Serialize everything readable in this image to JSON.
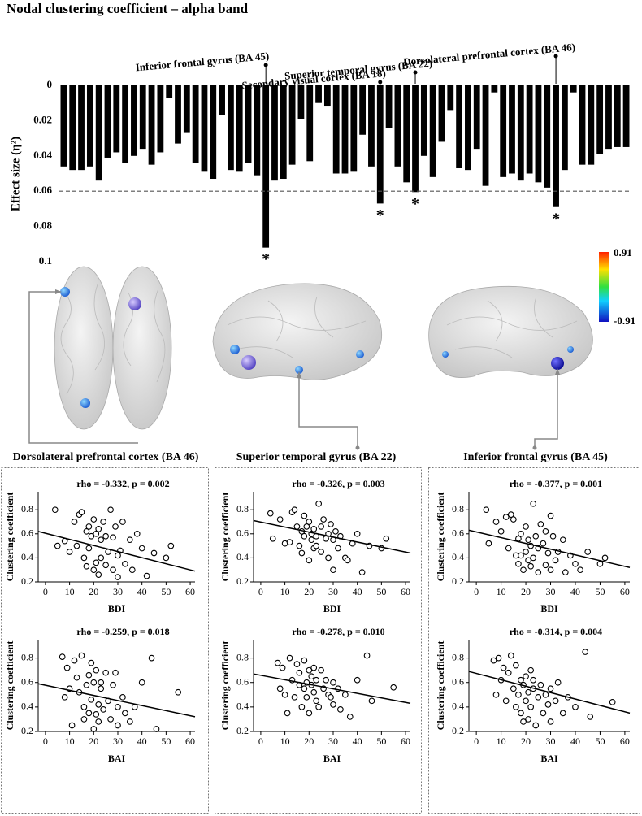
{
  "chart_data": [
    {
      "type": "bar",
      "title": "Nodal clustering coefficient – alpha band",
      "y_label": "Effect size (η²)",
      "categories": [
        null,
        null,
        null,
        null,
        null,
        null,
        null,
        null,
        null,
        null,
        null,
        null,
        null,
        null,
        null,
        null,
        null,
        null,
        null,
        null,
        null,
        null,
        null,
        "Inferior frontal gyrus (BA 45)",
        null,
        null,
        null,
        null,
        null,
        null,
        null,
        null,
        null,
        null,
        null,
        null,
        "Secondary visual cortex (BA 18)",
        null,
        null,
        null,
        "Superior temporal gyrus (BA 22)",
        null,
        null,
        null,
        null,
        null,
        null,
        null,
        null,
        null,
        null,
        null,
        null,
        null,
        null,
        null,
        "Dorsolateral prefrontal cortex (BA 46)",
        null,
        null,
        null,
        null,
        null,
        null,
        null,
        null
      ],
      "values": [
        0.046,
        0.048,
        0.048,
        0.046,
        0.054,
        0.041,
        0.038,
        0.044,
        0.04,
        0.036,
        0.045,
        0.038,
        0.007,
        0.033,
        0.027,
        0.044,
        0.049,
        0.053,
        0.017,
        0.048,
        0.049,
        0.044,
        0.051,
        0.092,
        0.054,
        0.053,
        0.045,
        0.019,
        0.043,
        0.01,
        0.012,
        0.05,
        0.05,
        0.049,
        0.028,
        0.046,
        0.067,
        0.024,
        0.046,
        0.055,
        0.0605,
        0.04,
        0.052,
        0.032,
        0.014,
        0.047,
        0.048,
        0.036,
        0.057,
        0.004,
        0.052,
        0.05,
        0.054,
        0.05,
        0.055,
        0.058,
        0.069,
        0.048,
        0.004,
        0.045,
        0.045,
        0.039,
        0.036,
        0.035,
        0.035
      ],
      "markers": [
        null,
        null,
        null,
        null,
        null,
        null,
        null,
        null,
        null,
        null,
        null,
        null,
        null,
        null,
        null,
        null,
        null,
        null,
        null,
        null,
        null,
        null,
        null,
        "*",
        null,
        null,
        null,
        null,
        null,
        null,
        null,
        null,
        null,
        null,
        null,
        null,
        "*",
        null,
        null,
        null,
        "*",
        null,
        null,
        null,
        null,
        null,
        null,
        null,
        null,
        null,
        null,
        null,
        null,
        null,
        null,
        null,
        "*",
        null,
        null,
        null,
        null,
        null,
        null,
        null,
        null
      ],
      "color": "#000000",
      "ylim": [
        0,
        0.1
      ],
      "yticks": [
        0,
        0.02,
        0.04,
        0.06,
        0.08,
        0.1
      ],
      "y_inverted": true,
      "threshold": 0.06,
      "grid": false
    },
    {
      "type": "scatter",
      "title": "rho = -0.332, p = 0.002",
      "x_label": "BDI",
      "y_label": "Clustering coefficient",
      "x": [
        4,
        5,
        8,
        10,
        12,
        13,
        14,
        15,
        16,
        17,
        17,
        18,
        18,
        19,
        20,
        20,
        21,
        21,
        22,
        22,
        23,
        23,
        24,
        25,
        25,
        26,
        27,
        28,
        28,
        29,
        30,
        30,
        31,
        32,
        33,
        35,
        36,
        38,
        40,
        42,
        45,
        50,
        52
      ],
      "values": [
        0.8,
        0.5,
        0.54,
        0.45,
        0.7,
        0.5,
        0.76,
        0.78,
        0.4,
        0.62,
        0.33,
        0.66,
        0.48,
        0.58,
        0.72,
        0.3,
        0.6,
        0.36,
        0.26,
        0.64,
        0.55,
        0.4,
        0.7,
        0.58,
        0.34,
        0.45,
        0.8,
        0.57,
        0.3,
        0.66,
        0.42,
        0.24,
        0.46,
        0.7,
        0.35,
        0.55,
        0.3,
        0.6,
        0.48,
        0.25,
        0.44,
        0.4,
        0.5
      ],
      "fit": {
        "x": [
          -3,
          62
        ],
        "values": [
          0.62,
          0.29
        ]
      },
      "xlim": [
        -3,
        62
      ],
      "ylim": [
        0.2,
        0.95
      ],
      "xticks": [
        0,
        10,
        20,
        30,
        40,
        50,
        60
      ],
      "yticks": [
        0.2,
        0.4,
        0.6,
        0.8
      ]
    },
    {
      "type": "scatter",
      "title": "rho = -0.326, p = 0.003",
      "x_label": "BDI",
      "y_label": "Clustering coefficient",
      "x": [
        4,
        5,
        8,
        10,
        12,
        13,
        14,
        15,
        16,
        17,
        17,
        18,
        18,
        19,
        20,
        20,
        21,
        21,
        22,
        22,
        23,
        23,
        24,
        25,
        25,
        26,
        27,
        28,
        28,
        29,
        30,
        30,
        31,
        32,
        33,
        35,
        36,
        38,
        40,
        42,
        45,
        50,
        52
      ],
      "values": [
        0.77,
        0.56,
        0.72,
        0.52,
        0.53,
        0.78,
        0.8,
        0.66,
        0.5,
        0.62,
        0.44,
        0.75,
        0.58,
        0.66,
        0.7,
        0.38,
        0.6,
        0.55,
        0.48,
        0.64,
        0.58,
        0.5,
        0.85,
        0.66,
        0.45,
        0.72,
        0.56,
        0.6,
        0.4,
        0.68,
        0.55,
        0.3,
        0.62,
        0.48,
        0.58,
        0.4,
        0.38,
        0.52,
        0.6,
        0.28,
        0.5,
        0.48,
        0.56
      ],
      "fit": {
        "x": [
          -3,
          62
        ],
        "values": [
          0.71,
          0.44
        ]
      },
      "xlim": [
        -3,
        62
      ],
      "ylim": [
        0.2,
        0.95
      ],
      "xticks": [
        0,
        10,
        20,
        30,
        40,
        50,
        60
      ],
      "yticks": [
        0.2,
        0.4,
        0.6,
        0.8
      ]
    },
    {
      "type": "scatter",
      "title": "rho = -0.377, p = 0.001",
      "x_label": "BDI",
      "y_label": "Clustering coefficient",
      "x": [
        4,
        5,
        8,
        10,
        12,
        13,
        14,
        15,
        16,
        17,
        17,
        18,
        18,
        19,
        20,
        20,
        21,
        21,
        22,
        22,
        23,
        23,
        24,
        25,
        25,
        26,
        27,
        28,
        28,
        29,
        30,
        30,
        31,
        32,
        33,
        35,
        36,
        38,
        40,
        42,
        45,
        50,
        52
      ],
      "values": [
        0.8,
        0.52,
        0.7,
        0.62,
        0.74,
        0.48,
        0.76,
        0.72,
        0.42,
        0.56,
        0.35,
        0.6,
        0.42,
        0.3,
        0.66,
        0.45,
        0.38,
        0.55,
        0.33,
        0.5,
        0.85,
        0.4,
        0.58,
        0.48,
        0.28,
        0.68,
        0.52,
        0.62,
        0.34,
        0.44,
        0.75,
        0.3,
        0.58,
        0.38,
        0.45,
        0.55,
        0.28,
        0.42,
        0.35,
        0.3,
        0.45,
        0.35,
        0.4
      ],
      "fit": {
        "x": [
          -3,
          62
        ],
        "values": [
          0.63,
          0.32
        ]
      },
      "xlim": [
        -3,
        62
      ],
      "ylim": [
        0.2,
        0.95
      ],
      "xticks": [
        0,
        10,
        20,
        30,
        40,
        50,
        60
      ],
      "yticks": [
        0.2,
        0.4,
        0.6,
        0.8
      ]
    },
    {
      "type": "scatter",
      "title": "rho = -0.259, p = 0.018",
      "x_label": "BAI",
      "y_label": "Clustering coefficient",
      "x": [
        7,
        8,
        9,
        10,
        11,
        12,
        13,
        14,
        15,
        16,
        16,
        17,
        18,
        18,
        19,
        19,
        20,
        20,
        21,
        21,
        22,
        22,
        23,
        23,
        24,
        25,
        26,
        27,
        28,
        29,
        30,
        30,
        32,
        33,
        35,
        37,
        40,
        44,
        46,
        55
      ],
      "values": [
        0.81,
        0.48,
        0.72,
        0.55,
        0.25,
        0.78,
        0.64,
        0.52,
        0.82,
        0.4,
        0.3,
        0.58,
        0.66,
        0.35,
        0.76,
        0.46,
        0.6,
        0.22,
        0.7,
        0.34,
        0.42,
        0.28,
        0.55,
        0.6,
        0.38,
        0.68,
        0.45,
        0.3,
        0.58,
        0.68,
        0.4,
        0.25,
        0.48,
        0.35,
        0.28,
        0.4,
        0.6,
        0.8,
        0.22,
        0.52
      ],
      "fit": {
        "x": [
          -3,
          62
        ],
        "values": [
          0.59,
          0.32
        ]
      },
      "xlim": [
        -3,
        62
      ],
      "ylim": [
        0.2,
        0.95
      ],
      "xticks": [
        0,
        10,
        20,
        30,
        40,
        50,
        60
      ],
      "yticks": [
        0.2,
        0.4,
        0.6,
        0.8
      ]
    },
    {
      "type": "scatter",
      "title": "rho = -0.278, p = 0.010",
      "x_label": "BAI",
      "y_label": "Clustering coefficient",
      "x": [
        7,
        8,
        9,
        10,
        11,
        12,
        13,
        14,
        15,
        16,
        16,
        17,
        18,
        18,
        19,
        19,
        20,
        20,
        21,
        21,
        22,
        22,
        23,
        23,
        24,
        25,
        26,
        27,
        28,
        29,
        30,
        30,
        32,
        33,
        35,
        37,
        40,
        44,
        46,
        55
      ],
      "values": [
        0.76,
        0.55,
        0.72,
        0.5,
        0.35,
        0.8,
        0.62,
        0.48,
        0.75,
        0.58,
        0.68,
        0.4,
        0.55,
        0.78,
        0.6,
        0.48,
        0.7,
        0.35,
        0.58,
        0.65,
        0.52,
        0.72,
        0.45,
        0.62,
        0.4,
        0.7,
        0.55,
        0.62,
        0.5,
        0.48,
        0.6,
        0.42,
        0.55,
        0.38,
        0.5,
        0.32,
        0.62,
        0.82,
        0.45,
        0.56
      ],
      "fit": {
        "x": [
          -3,
          62
        ],
        "values": [
          0.67,
          0.43
        ]
      },
      "xlim": [
        -3,
        62
      ],
      "ylim": [
        0.2,
        0.95
      ],
      "xticks": [
        0,
        10,
        20,
        30,
        40,
        50,
        60
      ],
      "yticks": [
        0.2,
        0.4,
        0.6,
        0.8
      ]
    },
    {
      "type": "scatter",
      "title": "rho = -0.314, p = 0.004",
      "x_label": "BAI",
      "y_label": "Clustering coefficient",
      "x": [
        7,
        8,
        9,
        10,
        11,
        12,
        13,
        14,
        15,
        16,
        16,
        17,
        18,
        18,
        19,
        19,
        20,
        20,
        21,
        21,
        22,
        22,
        23,
        23,
        24,
        25,
        26,
        27,
        28,
        29,
        30,
        30,
        32,
        33,
        35,
        37,
        40,
        44,
        46,
        55
      ],
      "values": [
        0.78,
        0.5,
        0.8,
        0.62,
        0.72,
        0.45,
        0.68,
        0.82,
        0.55,
        0.4,
        0.74,
        0.5,
        0.62,
        0.35,
        0.58,
        0.28,
        0.65,
        0.45,
        0.52,
        0.3,
        0.7,
        0.4,
        0.55,
        0.62,
        0.25,
        0.48,
        0.58,
        0.35,
        0.5,
        0.42,
        0.55,
        0.28,
        0.45,
        0.6,
        0.35,
        0.48,
        0.4,
        0.85,
        0.32,
        0.44
      ],
      "fit": {
        "x": [
          -3,
          62
        ],
        "values": [
          0.69,
          0.35
        ]
      },
      "xlim": [
        -3,
        62
      ],
      "ylim": [
        0.2,
        0.95
      ],
      "xticks": [
        0,
        10,
        20,
        30,
        40,
        50,
        60
      ],
      "yticks": [
        0.2,
        0.4,
        0.6,
        0.8
      ]
    }
  ],
  "brain_panels": {
    "labels": [
      "Dorsolateral prefrontal cortex (BA 46)",
      "Superior temporal gyrus (BA 22)",
      "Inferior frontal gyrus (BA 45)"
    ],
    "colorbar": {
      "max": 0.91,
      "min": -0.91
    }
  }
}
